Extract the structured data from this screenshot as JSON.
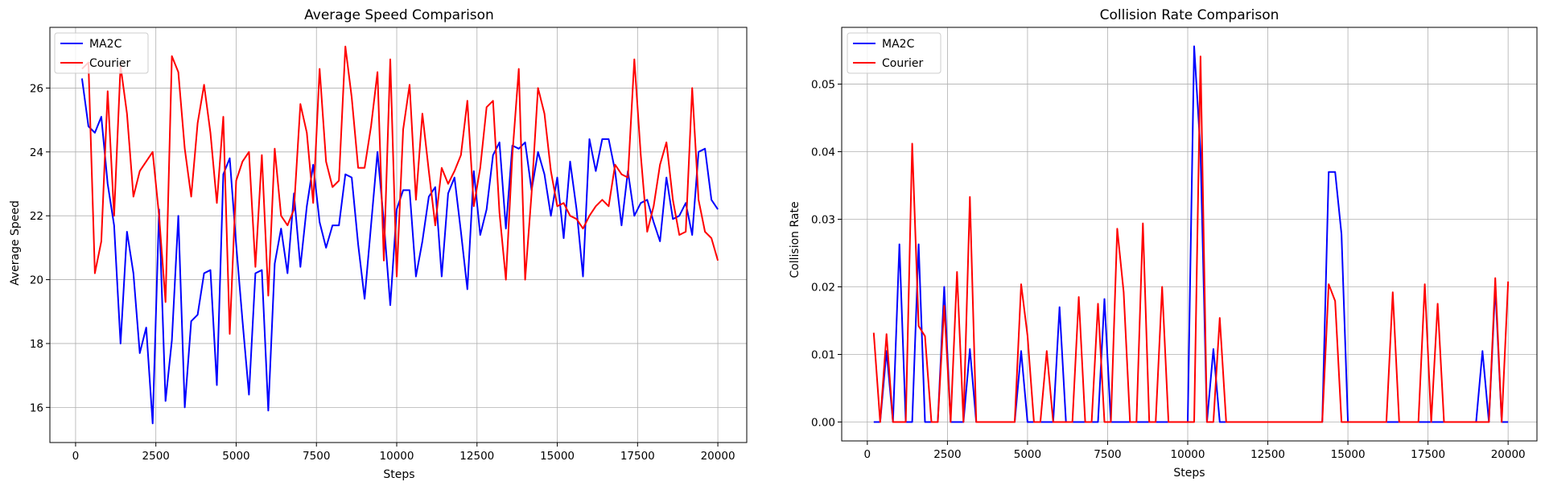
{
  "chart_data": [
    {
      "type": "line",
      "title": "Average Speed Comparison",
      "xlabel": "Steps",
      "ylabel": "Average Speed",
      "xlim": [
        -800,
        20900
      ],
      "ylim": [
        14.9,
        27.9
      ],
      "xticks": [
        0,
        2500,
        5000,
        7500,
        10000,
        12500,
        15000,
        17500,
        20000
      ],
      "yticks": [
        16,
        18,
        20,
        22,
        24,
        26
      ],
      "grid": true,
      "legend": "top-left",
      "x": [
        200,
        400,
        600,
        800,
        1000,
        1200,
        1400,
        1600,
        1800,
        2000,
        2200,
        2400,
        2600,
        2800,
        3000,
        3200,
        3400,
        3600,
        3800,
        4000,
        4200,
        4400,
        4600,
        4800,
        5000,
        5200,
        5400,
        5600,
        5800,
        6000,
        6200,
        6400,
        6600,
        6800,
        7000,
        7200,
        7400,
        7600,
        7800,
        8000,
        8200,
        8400,
        8600,
        8800,
        9000,
        9200,
        9400,
        9600,
        9800,
        10000,
        10200,
        10400,
        10600,
        10800,
        11000,
        11200,
        11400,
        11600,
        11800,
        12000,
        12200,
        12400,
        12600,
        12800,
        13000,
        13200,
        13400,
        13600,
        13800,
        14000,
        14200,
        14400,
        14600,
        14800,
        15000,
        15200,
        15400,
        15600,
        15800,
        16000,
        16200,
        16400,
        16600,
        16800,
        17000,
        17200,
        17400,
        17600,
        17800,
        18000,
        18200,
        18400,
        18600,
        18800,
        19000,
        19200,
        19400,
        19600,
        19800,
        20000
      ],
      "series": [
        {
          "name": "MA2C",
          "color": "#0000ff",
          "values": [
            26.3,
            24.8,
            24.6,
            25.1,
            23.0,
            21.7,
            18.0,
            21.5,
            20.2,
            17.7,
            18.5,
            15.5,
            22.2,
            16.2,
            18.1,
            22.0,
            16.0,
            18.7,
            18.9,
            20.2,
            20.3,
            16.7,
            23.3,
            23.8,
            21.1,
            18.7,
            16.4,
            20.2,
            20.3,
            15.9,
            20.5,
            21.6,
            20.2,
            22.7,
            20.4,
            22.3,
            23.6,
            21.8,
            21.0,
            21.7,
            21.7,
            23.3,
            23.2,
            21.1,
            19.4,
            21.7,
            24.0,
            21.8,
            19.2,
            22.2,
            22.8,
            22.8,
            20.1,
            21.2,
            22.6,
            22.9,
            20.1,
            22.7,
            23.2,
            21.5,
            19.7,
            23.4,
            21.4,
            22.2,
            23.9,
            24.3,
            21.6,
            24.2,
            24.1,
            24.3,
            22.8,
            24.0,
            23.3,
            22.0,
            23.2,
            21.3,
            23.7,
            22.2,
            20.1,
            24.4,
            23.4,
            24.4,
            24.4,
            23.4,
            21.7,
            23.4,
            22.0,
            22.4,
            22.5,
            21.8,
            21.2,
            23.2,
            21.9,
            22.0,
            22.4,
            21.4,
            24.0,
            24.1,
            22.5,
            22.2
          ]
        },
        {
          "name": "Courier",
          "color": "#ff0000",
          "values": [
            26.6,
            26.8,
            20.2,
            21.2,
            25.9,
            22.0,
            26.7,
            25.2,
            22.6,
            23.4,
            23.7,
            24.0,
            22.0,
            19.3,
            27.0,
            26.5,
            24.1,
            22.6,
            24.9,
            26.1,
            24.6,
            22.4,
            25.1,
            18.3,
            23.1,
            23.7,
            24.0,
            20.4,
            23.9,
            19.5,
            24.1,
            22.0,
            21.7,
            22.2,
            25.5,
            24.6,
            22.4,
            26.6,
            23.7,
            22.9,
            23.1,
            27.3,
            25.7,
            23.5,
            23.5,
            24.8,
            26.5,
            20.6,
            26.9,
            20.1,
            24.7,
            26.1,
            22.5,
            25.2,
            23.4,
            21.7,
            23.5,
            23.0,
            23.4,
            23.9,
            25.6,
            22.3,
            23.5,
            25.4,
            25.6,
            22.1,
            20.0,
            23.9,
            26.6,
            20.0,
            22.7,
            26.0,
            25.2,
            23.4,
            22.3,
            22.4,
            22.0,
            21.9,
            21.6,
            22.0,
            22.3,
            22.5,
            22.3,
            23.6,
            23.3,
            23.2,
            26.9,
            23.9,
            21.5,
            22.3,
            23.6,
            24.3,
            22.5,
            21.4,
            21.5,
            26.0,
            22.5,
            21.5,
            21.3,
            20.6
          ]
        }
      ]
    },
    {
      "type": "line",
      "title": "Collision Rate Comparison",
      "xlabel": "Steps",
      "ylabel": "Collision Rate",
      "xlim": [
        -800,
        20900
      ],
      "ylim": [
        -0.0028,
        0.0584
      ],
      "xticks": [
        0,
        2500,
        5000,
        7500,
        10000,
        12500,
        15000,
        17500,
        20000
      ],
      "yticks": [
        0.0,
        0.01,
        0.02,
        0.03,
        0.04,
        0.05
      ],
      "ytick_labels": [
        "0.00",
        "0.01",
        "0.02",
        "0.03",
        "0.04",
        "0.05"
      ],
      "grid": true,
      "legend": "top-left",
      "x": [
        200,
        400,
        600,
        800,
        1000,
        1200,
        1400,
        1600,
        1800,
        2000,
        2200,
        2400,
        2600,
        2800,
        3000,
        3200,
        3400,
        3600,
        3800,
        4000,
        4200,
        4400,
        4600,
        4800,
        5000,
        5200,
        5400,
        5600,
        5800,
        6000,
        6200,
        6400,
        6600,
        6800,
        7000,
        7200,
        7400,
        7600,
        7800,
        8000,
        8200,
        8400,
        8600,
        8800,
        9000,
        9200,
        9400,
        9600,
        9800,
        10000,
        10200,
        10400,
        10600,
        10800,
        11000,
        11200,
        11400,
        11600,
        11800,
        12000,
        12200,
        12400,
        12600,
        12800,
        13000,
        13200,
        13400,
        13600,
        13800,
        14000,
        14200,
        14400,
        14600,
        14800,
        15000,
        15200,
        15400,
        15600,
        15800,
        16000,
        16200,
        16400,
        16600,
        16800,
        17000,
        17200,
        17400,
        17600,
        17800,
        18000,
        18200,
        18400,
        18600,
        18800,
        19000,
        19200,
        19400,
        19600,
        19800,
        20000
      ],
      "series": [
        {
          "name": "MA2C",
          "color": "#0000ff",
          "values": [
            0,
            0,
            0.0105,
            0,
            0.0263,
            0,
            0,
            0.0263,
            0,
            0,
            0,
            0.02,
            0,
            0,
            0,
            0.0108,
            0,
            0,
            0,
            0,
            0,
            0,
            0,
            0.0105,
            0,
            0,
            0,
            0,
            0,
            0.017,
            0,
            0,
            0,
            0,
            0,
            0,
            0.0182,
            0,
            0,
            0,
            0,
            0,
            0,
            0,
            0,
            0,
            0,
            0,
            0,
            0,
            0.0556,
            0.04,
            0,
            0.0108,
            0,
            0,
            0,
            0,
            0,
            0,
            0,
            0,
            0,
            0,
            0,
            0,
            0,
            0,
            0,
            0,
            0,
            0.037,
            0.037,
            0.0278,
            0,
            0,
            0,
            0,
            0,
            0,
            0,
            0,
            0,
            0,
            0,
            0,
            0,
            0,
            0,
            0,
            0,
            0,
            0,
            0,
            0,
            0.0105,
            0,
            0.02,
            0,
            0
          ]
        },
        {
          "name": "Courier",
          "color": "#ff0000",
          "values": [
            0.0132,
            0,
            0.013,
            0,
            0,
            0,
            0.0412,
            0.0142,
            0.0127,
            0,
            0,
            0.0172,
            0,
            0.0222,
            0,
            0.0333,
            0,
            0,
            0,
            0,
            0,
            0,
            0,
            0.0204,
            0.0128,
            0,
            0,
            0.0105,
            0,
            0,
            0,
            0,
            0.0185,
            0,
            0,
            0.0175,
            0,
            0,
            0.0286,
            0.0192,
            0,
            0,
            0.0294,
            0,
            0,
            0.02,
            0,
            0,
            0,
            0,
            0,
            0.0541,
            0,
            0,
            0.0154,
            0,
            0,
            0,
            0,
            0,
            0,
            0,
            0,
            0,
            0,
            0,
            0,
            0,
            0,
            0,
            0,
            0.0204,
            0.0179,
            0,
            0,
            0,
            0,
            0,
            0,
            0,
            0,
            0.0192,
            0,
            0,
            0,
            0,
            0.0204,
            0,
            0.0175,
            0,
            0,
            0,
            0,
            0,
            0,
            0,
            0,
            0.0213,
            0,
            0.0208
          ]
        }
      ]
    }
  ]
}
